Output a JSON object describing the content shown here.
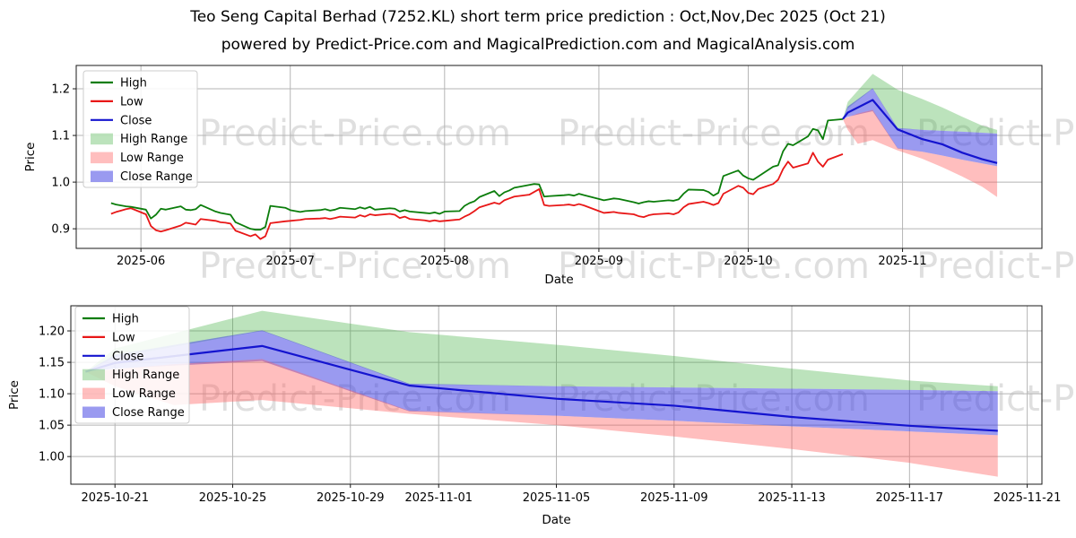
{
  "page": {
    "title": "Teo Seng Capital Berhad (7252.KL) short term price prediction : Oct,Nov,Dec 2025 (Oct 21)",
    "subtitle": "powered by Predict-Price.com and MagicalPrediction.com and MagicalAnalysis.com",
    "watermark": "Predict-Price.com",
    "background": "#ffffff"
  },
  "colors": {
    "high": "#0b7d0b",
    "low": "#e81717",
    "close": "#1414cf",
    "high_range": "#3faf3f",
    "high_range_opacity": 0.35,
    "low_range": "#ff5c5c",
    "low_range_opacity": 0.4,
    "close_range": "#3d3de2",
    "close_range_opacity": 0.52,
    "grid": "#b5b5b5",
    "spine": "#1a1a1a",
    "text": "#000000",
    "legend_border": "#cccccc"
  },
  "legend": {
    "items": [
      {
        "label": "High",
        "swatch": "line",
        "color_key": "high"
      },
      {
        "label": "Low",
        "swatch": "line",
        "color_key": "low"
      },
      {
        "label": "Close",
        "swatch": "line",
        "color_key": "close"
      },
      {
        "label": "High Range",
        "swatch": "patch",
        "color_key": "high_range"
      },
      {
        "label": "Low Range",
        "swatch": "patch",
        "color_key": "low_range"
      },
      {
        "label": "Close Range",
        "swatch": "patch",
        "color_key": "close_range"
      }
    ]
  },
  "chart_data": {
    "type": "line",
    "series_data": {
      "history": {
        "dates": [
          "2025-05-26",
          "2025-05-27",
          "2025-05-28",
          "2025-05-29",
          "2025-05-30",
          "2025-06-02",
          "2025-06-03",
          "2025-06-04",
          "2025-06-05",
          "2025-06-06",
          "2025-06-09",
          "2025-06-10",
          "2025-06-11",
          "2025-06-12",
          "2025-06-13",
          "2025-06-16",
          "2025-06-17",
          "2025-06-18",
          "2025-06-19",
          "2025-06-20",
          "2025-06-23",
          "2025-06-24",
          "2025-06-25",
          "2025-06-26",
          "2025-06-27",
          "2025-06-30",
          "2025-07-01",
          "2025-07-02",
          "2025-07-03",
          "2025-07-04",
          "2025-07-07",
          "2025-07-08",
          "2025-07-09",
          "2025-07-10",
          "2025-07-11",
          "2025-07-14",
          "2025-07-15",
          "2025-07-16",
          "2025-07-17",
          "2025-07-18",
          "2025-07-21",
          "2025-07-22",
          "2025-07-23",
          "2025-07-24",
          "2025-07-25",
          "2025-07-28",
          "2025-07-29",
          "2025-07-30",
          "2025-07-31",
          "2025-08-01",
          "2025-08-04",
          "2025-08-05",
          "2025-08-06",
          "2025-08-07",
          "2025-08-08",
          "2025-08-11",
          "2025-08-12",
          "2025-08-13",
          "2025-08-14",
          "2025-08-15",
          "2025-08-18",
          "2025-08-19",
          "2025-08-20",
          "2025-08-21",
          "2025-08-22",
          "2025-08-25",
          "2025-08-26",
          "2025-08-27",
          "2025-08-28",
          "2025-08-29",
          "2025-09-01",
          "2025-09-02",
          "2025-09-03",
          "2025-09-04",
          "2025-09-05",
          "2025-09-08",
          "2025-09-09",
          "2025-09-10",
          "2025-09-11",
          "2025-09-12",
          "2025-09-15",
          "2025-09-16",
          "2025-09-17",
          "2025-09-18",
          "2025-09-19",
          "2025-09-22",
          "2025-09-23",
          "2025-09-24",
          "2025-09-25",
          "2025-09-26",
          "2025-09-29",
          "2025-09-30",
          "2025-10-01",
          "2025-10-02",
          "2025-10-03",
          "2025-10-06",
          "2025-10-07",
          "2025-10-08",
          "2025-10-09",
          "2025-10-10",
          "2025-10-13",
          "2025-10-14",
          "2025-10-15",
          "2025-10-16",
          "2025-10-17",
          "2025-10-20"
        ],
        "high": [
          0.955,
          0.952,
          0.95,
          0.948,
          0.947,
          0.941,
          0.922,
          0.93,
          0.943,
          0.941,
          0.948,
          0.941,
          0.94,
          0.942,
          0.951,
          0.937,
          0.934,
          0.932,
          0.93,
          0.914,
          0.9,
          0.898,
          0.898,
          0.904,
          0.949,
          0.945,
          0.94,
          0.938,
          0.936,
          0.938,
          0.94,
          0.942,
          0.939,
          0.941,
          0.945,
          0.942,
          0.946,
          0.943,
          0.947,
          0.941,
          0.944,
          0.943,
          0.937,
          0.94,
          0.937,
          0.934,
          0.933,
          0.935,
          0.932,
          0.937,
          0.938,
          0.949,
          0.955,
          0.959,
          0.968,
          0.981,
          0.97,
          0.978,
          0.982,
          0.988,
          0.994,
          0.996,
          0.995,
          0.969,
          0.97,
          0.972,
          0.973,
          0.971,
          0.975,
          0.972,
          0.964,
          0.961,
          0.963,
          0.965,
          0.964,
          0.957,
          0.954,
          0.957,
          0.959,
          0.958,
          0.961,
          0.96,
          0.963,
          0.975,
          0.984,
          0.983,
          0.979,
          0.971,
          0.977,
          1.013,
          1.025,
          1.014,
          1.008,
          1.005,
          1.012,
          1.033,
          1.036,
          1.066,
          1.082,
          1.079,
          1.098,
          1.114,
          1.111,
          1.092,
          1.132,
          1.135
        ],
        "low": [
          0.932,
          0.936,
          0.939,
          0.942,
          0.944,
          0.931,
          0.906,
          0.897,
          0.894,
          0.897,
          0.907,
          0.913,
          0.911,
          0.909,
          0.921,
          0.917,
          0.914,
          0.913,
          0.911,
          0.896,
          0.884,
          0.888,
          0.878,
          0.884,
          0.912,
          0.916,
          0.917,
          0.918,
          0.919,
          0.921,
          0.922,
          0.923,
          0.921,
          0.923,
          0.926,
          0.924,
          0.929,
          0.926,
          0.931,
          0.929,
          0.932,
          0.93,
          0.923,
          0.926,
          0.921,
          0.918,
          0.916,
          0.918,
          0.916,
          0.917,
          0.92,
          0.926,
          0.931,
          0.938,
          0.946,
          0.956,
          0.953,
          0.961,
          0.965,
          0.969,
          0.973,
          0.979,
          0.985,
          0.951,
          0.949,
          0.951,
          0.952,
          0.95,
          0.953,
          0.95,
          0.938,
          0.934,
          0.935,
          0.936,
          0.934,
          0.931,
          0.927,
          0.925,
          0.929,
          0.931,
          0.933,
          0.931,
          0.935,
          0.946,
          0.953,
          0.958,
          0.955,
          0.951,
          0.955,
          0.975,
          0.992,
          0.988,
          0.977,
          0.974,
          0.985,
          0.996,
          1.005,
          1.028,
          1.044,
          1.031,
          1.04,
          1.063,
          1.044,
          1.033,
          1.048,
          1.06
        ]
      },
      "forecast": {
        "dates": [
          "2025-10-20",
          "2025-10-21",
          "2025-10-26",
          "2025-10-31",
          "2025-11-05",
          "2025-11-09",
          "2025-11-13",
          "2025-11-17",
          "2025-11-20"
        ],
        "close": [
          1.135,
          1.149,
          1.176,
          1.113,
          1.092,
          1.081,
          1.063,
          1.049,
          1.041
        ],
        "high_range": {
          "dates": [
            "2025-10-20",
            "2025-10-21",
            "2025-10-26",
            "2025-10-31",
            "2025-11-05",
            "2025-11-09",
            "2025-11-13",
            "2025-11-17",
            "2025-11-20"
          ],
          "upper": [
            1.135,
            1.172,
            1.232,
            1.198,
            1.178,
            1.16,
            1.14,
            1.121,
            1.112
          ],
          "lower": [
            1.135,
            1.158,
            1.2,
            1.115,
            1.112,
            1.11,
            1.108,
            1.106,
            1.104
          ]
        },
        "close_range": {
          "dates": [
            "2025-10-20",
            "2025-10-21",
            "2025-10-26",
            "2025-10-31",
            "2025-11-05",
            "2025-11-09",
            "2025-11-13",
            "2025-11-17",
            "2025-11-20"
          ],
          "upper": [
            1.135,
            1.162,
            1.201,
            1.116,
            1.112,
            1.11,
            1.108,
            1.106,
            1.104
          ],
          "lower": [
            1.135,
            1.14,
            1.152,
            1.072,
            1.065,
            1.057,
            1.048,
            1.04,
            1.034
          ]
        },
        "low_range": {
          "dates": [
            "2025-10-20",
            "2025-10-21",
            "2025-10-23",
            "2025-10-26",
            "2025-10-31",
            "2025-11-05",
            "2025-11-09",
            "2025-11-13",
            "2025-11-17",
            "2025-11-20"
          ],
          "upper": [
            1.135,
            1.139,
            1.147,
            1.155,
            1.073,
            1.065,
            1.057,
            1.048,
            1.04,
            1.034
          ],
          "lower": [
            1.135,
            1.112,
            1.082,
            1.09,
            1.068,
            1.05,
            1.032,
            1.012,
            0.99,
            0.968
          ]
        }
      }
    },
    "charts": [
      {
        "name": "price-history-chart",
        "xlabel": "Date",
        "ylabel": "Price",
        "grid": true,
        "legend_position": "upper left",
        "x_domain": [
          "2025-05-19",
          "2025-11-29"
        ],
        "y_domain": [
          0.858,
          1.25
        ],
        "x_ticks": [
          {
            "value": "2025-06-01",
            "label": "2025-06"
          },
          {
            "value": "2025-07-01",
            "label": "2025-07"
          },
          {
            "value": "2025-08-01",
            "label": "2025-08"
          },
          {
            "value": "2025-09-01",
            "label": "2025-09"
          },
          {
            "value": "2025-10-01",
            "label": "2025-10"
          },
          {
            "value": "2025-11-01",
            "label": "2025-11"
          }
        ],
        "y_ticks": [
          {
            "value": 0.9,
            "label": "0.9"
          },
          {
            "value": 1.0,
            "label": "1.0"
          },
          {
            "value": 1.1,
            "label": "1.1"
          },
          {
            "value": 1.2,
            "label": "1.2"
          }
        ],
        "draw": [
          "history",
          "forecast"
        ]
      },
      {
        "name": "forecast-zoom-chart",
        "xlabel": "Date",
        "ylabel": "Price",
        "grid": true,
        "legend_position": "upper left",
        "x_domain": [
          "2025-10-19T12:00:00Z",
          "2025-11-21T12:00:00Z"
        ],
        "y_domain": [
          0.956,
          1.24
        ],
        "x_ticks": [
          {
            "value": "2025-10-21",
            "label": "2025-10-21"
          },
          {
            "value": "2025-10-25",
            "label": "2025-10-25"
          },
          {
            "value": "2025-10-29",
            "label": "2025-10-29"
          },
          {
            "value": "2025-11-01",
            "label": "2025-11-01"
          },
          {
            "value": "2025-11-05",
            "label": "2025-11-05"
          },
          {
            "value": "2025-11-09",
            "label": "2025-11-09"
          },
          {
            "value": "2025-11-13",
            "label": "2025-11-13"
          },
          {
            "value": "2025-11-17",
            "label": "2025-11-17"
          },
          {
            "value": "2025-11-21",
            "label": "2025-11-21"
          }
        ],
        "y_ticks": [
          {
            "value": 1.0,
            "label": "1.00"
          },
          {
            "value": 1.05,
            "label": "1.05"
          },
          {
            "value": 1.1,
            "label": "1.10"
          },
          {
            "value": 1.15,
            "label": "1.15"
          },
          {
            "value": 1.2,
            "label": "1.20"
          }
        ],
        "draw": [
          "forecast"
        ]
      }
    ]
  }
}
